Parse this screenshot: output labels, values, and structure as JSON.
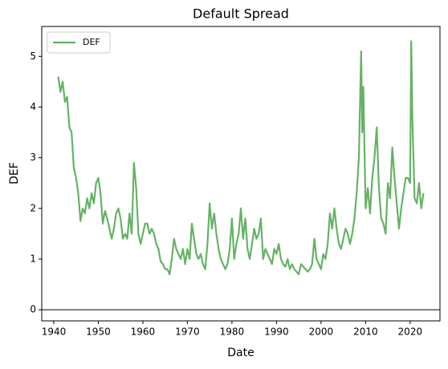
{
  "chart_data": {
    "type": "line",
    "title": "Default Spread",
    "x_label": "Date",
    "y_label": "DEF",
    "x": [
      1941,
      1941.5,
      1942,
      1942.5,
      1943,
      1943.5,
      1944,
      1944.5,
      1945,
      1945.5,
      1946,
      1946.5,
      1947,
      1947.5,
      1948,
      1948.5,
      1949,
      1949.5,
      1950,
      1950.5,
      1951,
      1951.5,
      1952,
      1952.5,
      1953,
      1953.5,
      1954,
      1954.5,
      1955,
      1955.5,
      1956,
      1956.5,
      1957,
      1957.5,
      1958,
      1958.5,
      1959,
      1959.5,
      1960,
      1960.5,
      1961,
      1961.5,
      1962,
      1962.5,
      1963,
      1963.5,
      1964,
      1964.5,
      1965,
      1965.5,
      1966,
      1966.5,
      1967,
      1967.5,
      1968,
      1968.5,
      1969,
      1969.5,
      1970,
      1970.5,
      1971,
      1971.5,
      1972,
      1972.5,
      1973,
      1973.5,
      1974,
      1974.5,
      1975,
      1975.5,
      1976,
      1976.5,
      1977,
      1977.5,
      1978,
      1978.5,
      1979,
      1979.5,
      1980,
      1980.5,
      1981,
      1981.5,
      1982,
      1982.5,
      1983,
      1983.5,
      1984,
      1984.5,
      1985,
      1985.5,
      1986,
      1986.5,
      1987,
      1987.5,
      1988,
      1988.5,
      1989,
      1989.5,
      1990,
      1990.5,
      1991,
      1991.5,
      1992,
      1992.5,
      1993,
      1993.5,
      1994,
      1994.5,
      1995,
      1995.5,
      1996,
      1996.5,
      1997,
      1997.5,
      1998,
      1998.5,
      1999,
      1999.5,
      2000,
      2000.5,
      2001,
      2001.5,
      2002,
      2002.5,
      2003,
      2003.5,
      2004,
      2004.5,
      2005,
      2005.5,
      2006,
      2006.5,
      2007,
      2007.5,
      2008,
      2008.5,
      2009,
      2009.25,
      2009.5,
      2010,
      2010.5,
      2011,
      2011.5,
      2012,
      2012.5,
      2013,
      2013.5,
      2014,
      2014.5,
      2015,
      2015.5,
      2016,
      2016.5,
      2017,
      2017.5,
      2018,
      2018.5,
      2019,
      2019.5,
      2020,
      2020.25,
      2020.5,
      2021,
      2021.5,
      2022,
      2022.5,
      2023
    ],
    "series": [
      {
        "name": "DEF",
        "color": "#66b266",
        "values": [
          4.6,
          4.3,
          4.5,
          4.1,
          4.2,
          3.6,
          3.5,
          2.8,
          2.6,
          2.3,
          1.75,
          2.0,
          1.9,
          2.2,
          2.0,
          2.3,
          2.1,
          2.5,
          2.6,
          2.3,
          1.7,
          1.95,
          1.8,
          1.6,
          1.4,
          1.6,
          1.9,
          2.0,
          1.8,
          1.4,
          1.5,
          1.4,
          1.9,
          1.5,
          2.9,
          2.4,
          1.5,
          1.3,
          1.5,
          1.7,
          1.7,
          1.5,
          1.6,
          1.5,
          1.3,
          1.2,
          0.95,
          0.9,
          0.8,
          0.8,
          0.7,
          1.0,
          1.4,
          1.2,
          1.1,
          1.0,
          1.2,
          0.9,
          1.2,
          1.0,
          1.7,
          1.4,
          1.1,
          1.0,
          1.1,
          0.9,
          0.8,
          1.3,
          2.1,
          1.6,
          1.9,
          1.5,
          1.2,
          1.0,
          0.9,
          0.8,
          0.9,
          1.2,
          1.8,
          1.0,
          1.3,
          1.5,
          2.0,
          1.4,
          1.8,
          1.2,
          1.0,
          1.3,
          1.6,
          1.4,
          1.5,
          1.8,
          1.0,
          1.2,
          1.1,
          1.0,
          0.9,
          1.2,
          1.1,
          1.3,
          1.0,
          0.9,
          0.85,
          1.0,
          0.8,
          0.9,
          0.8,
          0.75,
          0.7,
          0.9,
          0.85,
          0.8,
          0.75,
          0.8,
          0.9,
          1.4,
          1.0,
          0.9,
          0.8,
          1.1,
          1.0,
          1.3,
          1.9,
          1.6,
          2.0,
          1.6,
          1.3,
          1.2,
          1.4,
          1.6,
          1.5,
          1.3,
          1.5,
          1.8,
          2.3,
          3.0,
          5.1,
          3.5,
          4.4,
          2.0,
          2.4,
          1.9,
          2.6,
          3.0,
          3.6,
          2.4,
          1.8,
          1.7,
          1.5,
          2.5,
          2.2,
          3.2,
          2.6,
          2.1,
          1.6,
          2.0,
          2.3,
          2.6,
          2.6,
          2.5,
          5.3,
          3.8,
          2.2,
          2.1,
          2.5,
          2.0,
          2.3
        ]
      }
    ],
    "reference_line": 0,
    "xlim": [
      1937.3,
      2026.7
    ],
    "ylim": [
      -0.22,
      5.59
    ],
    "xticks": [
      1940,
      1950,
      1960,
      1970,
      1980,
      1990,
      2000,
      2010,
      2020
    ],
    "yticks": [
      0,
      1,
      2,
      3,
      4,
      5
    ],
    "legend": "upper left",
    "grid": false
  }
}
